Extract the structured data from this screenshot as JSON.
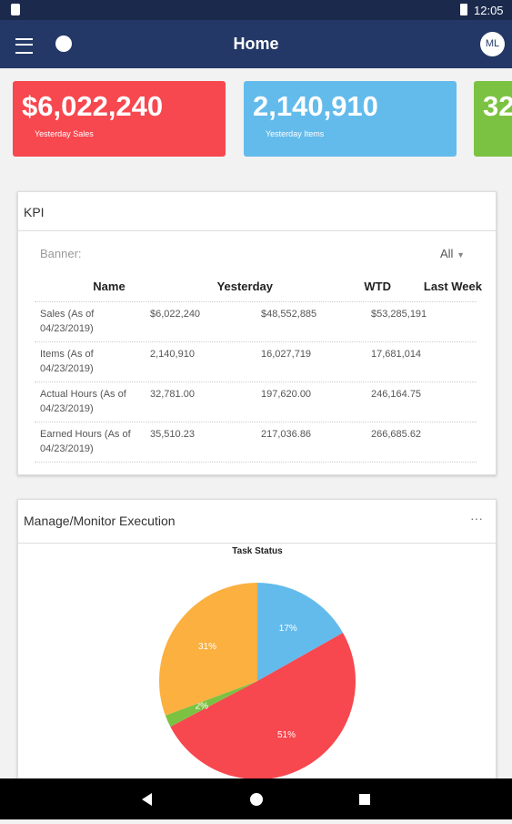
{
  "status_bar": {
    "time": "12:05"
  },
  "app_bar": {
    "title": "Home",
    "avatar": "ML"
  },
  "tiles": [
    {
      "value": "$6,022,240",
      "label": "Yesterday Sales"
    },
    {
      "value": "2,140,910",
      "label": "Yesterday Items"
    },
    {
      "value": "32"
    }
  ],
  "kpi": {
    "title": "KPI",
    "filter_label": "Banner:",
    "filter_value": "All",
    "columns": [
      "Name",
      "Yesterday",
      "WTD",
      "Last Week"
    ],
    "rows": [
      [
        "Sales (As of 04/23/2019)",
        "$6,022,240",
        "$48,552,885",
        "$53,285,191"
      ],
      [
        "Items (As of 04/23/2019)",
        "2,140,910",
        "16,027,719",
        "17,681,014"
      ],
      [
        "Actual Hours (As of 04/23/2019)",
        "32,781.00",
        "197,620.00",
        "246,164.75"
      ],
      [
        "Earned Hours (As of 04/23/2019)",
        "35,510.23",
        "217,036.86",
        "266,685.62"
      ]
    ]
  },
  "execution": {
    "title": "Manage/Monitor Execution",
    "chart": {
      "type": "pie",
      "title": "Task Status",
      "values": [
        17,
        51,
        2,
        31
      ],
      "value_labels": [
        "17%",
        "51%",
        "2%",
        "31%"
      ],
      "colors": [
        "#63bbec",
        "#f7474f",
        "#7cc242",
        "#fbb040"
      ]
    }
  }
}
